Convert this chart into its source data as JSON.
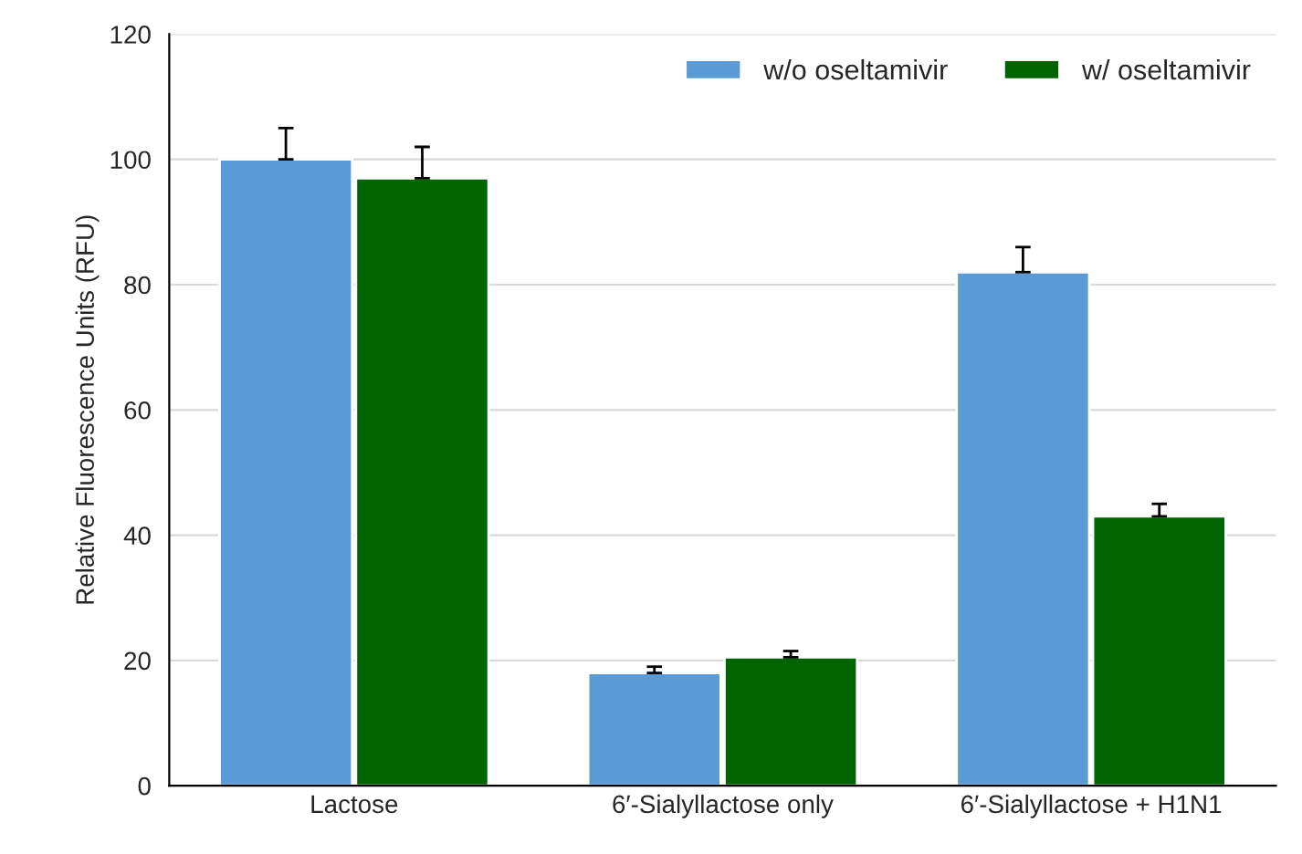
{
  "chart_data": {
    "type": "bar",
    "ylabel": "Relative Fluorescence Units (RFU)",
    "categories": [
      "Lactose",
      "6′-Sialyllactose only",
      "6′-Sialyllactose + H1N1"
    ],
    "series": [
      {
        "name": "w/o oseltamivir",
        "color": "#5b9bd5",
        "values": [
          100,
          18,
          82
        ],
        "errors": [
          [
            100,
            105
          ],
          [
            18,
            19
          ],
          [
            82,
            86
          ]
        ]
      },
      {
        "name": "w/ oseltamivir",
        "color": "#006400",
        "values": [
          97,
          20.5,
          43
        ],
        "errors": [
          [
            97,
            102
          ],
          [
            20.5,
            21.5
          ],
          [
            43,
            45
          ]
        ]
      }
    ],
    "ylim": [
      0,
      120
    ],
    "yticks": [
      0,
      20,
      40,
      60,
      80,
      100,
      120
    ],
    "grid": "y",
    "legend": "top right"
  }
}
